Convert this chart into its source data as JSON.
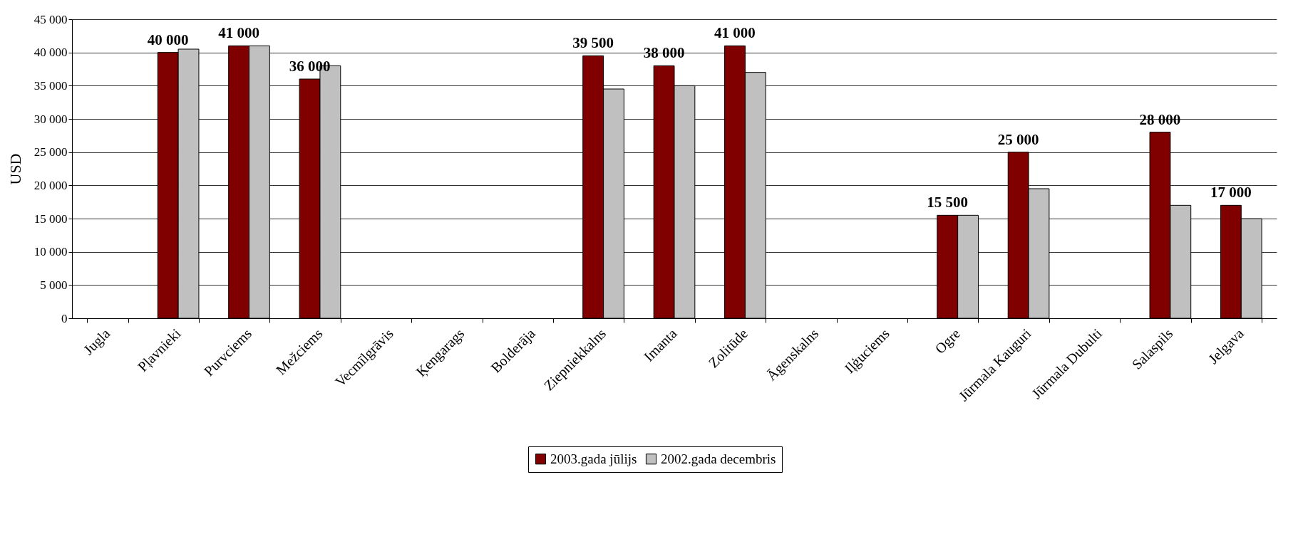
{
  "chart_data": {
    "type": "bar",
    "ylabel": "USD",
    "categories": [
      "Jugla",
      "Pļavnieki",
      "Purvciems",
      "Mežciems",
      "Vecmīlgrāvis",
      "Ķengarags",
      "Bolderāja",
      "Ziepniekkalns",
      "Imanta",
      "Zolitūde",
      "Āgenskalns",
      "Iļģuciems",
      "Ogre",
      "Jūrmala Kauguri",
      "Jūrmala Dubulti",
      "Salaspils",
      "Jelgava"
    ],
    "series": [
      {
        "name": "2003.gada jūlijs",
        "color": "#800000",
        "values": [
          null,
          40000,
          41000,
          36000,
          null,
          null,
          null,
          39500,
          38000,
          41000,
          null,
          null,
          15500,
          25000,
          null,
          28000,
          17000
        ],
        "value_labels": [
          null,
          "40 000",
          "41 000",
          "36 000",
          null,
          null,
          null,
          "39 500",
          "38 000",
          "41 000",
          null,
          null,
          "15 500",
          "25 000",
          null,
          "28 000",
          "17 000"
        ]
      },
      {
        "name": "2002.gada decembris",
        "color": "#c0c0c0",
        "values": [
          null,
          40500,
          41000,
          38000,
          null,
          null,
          null,
          34500,
          35000,
          37000,
          null,
          null,
          15500,
          19500,
          null,
          17000,
          15000
        ]
      }
    ],
    "ylim": [
      0,
      45000
    ],
    "yticks": [
      {
        "value": 0,
        "label": "0"
      },
      {
        "value": 5000,
        "label": "5 000"
      },
      {
        "value": 10000,
        "label": "10 000"
      },
      {
        "value": 15000,
        "label": "15 000"
      },
      {
        "value": 20000,
        "label": "20 000"
      },
      {
        "value": 25000,
        "label": "25 000"
      },
      {
        "value": 30000,
        "label": "30 000"
      },
      {
        "value": 35000,
        "label": "35 000"
      },
      {
        "value": 40000,
        "label": "40 000"
      },
      {
        "value": 45000,
        "label": "45 000"
      }
    ],
    "grid": "y",
    "legend": "bottom"
  }
}
